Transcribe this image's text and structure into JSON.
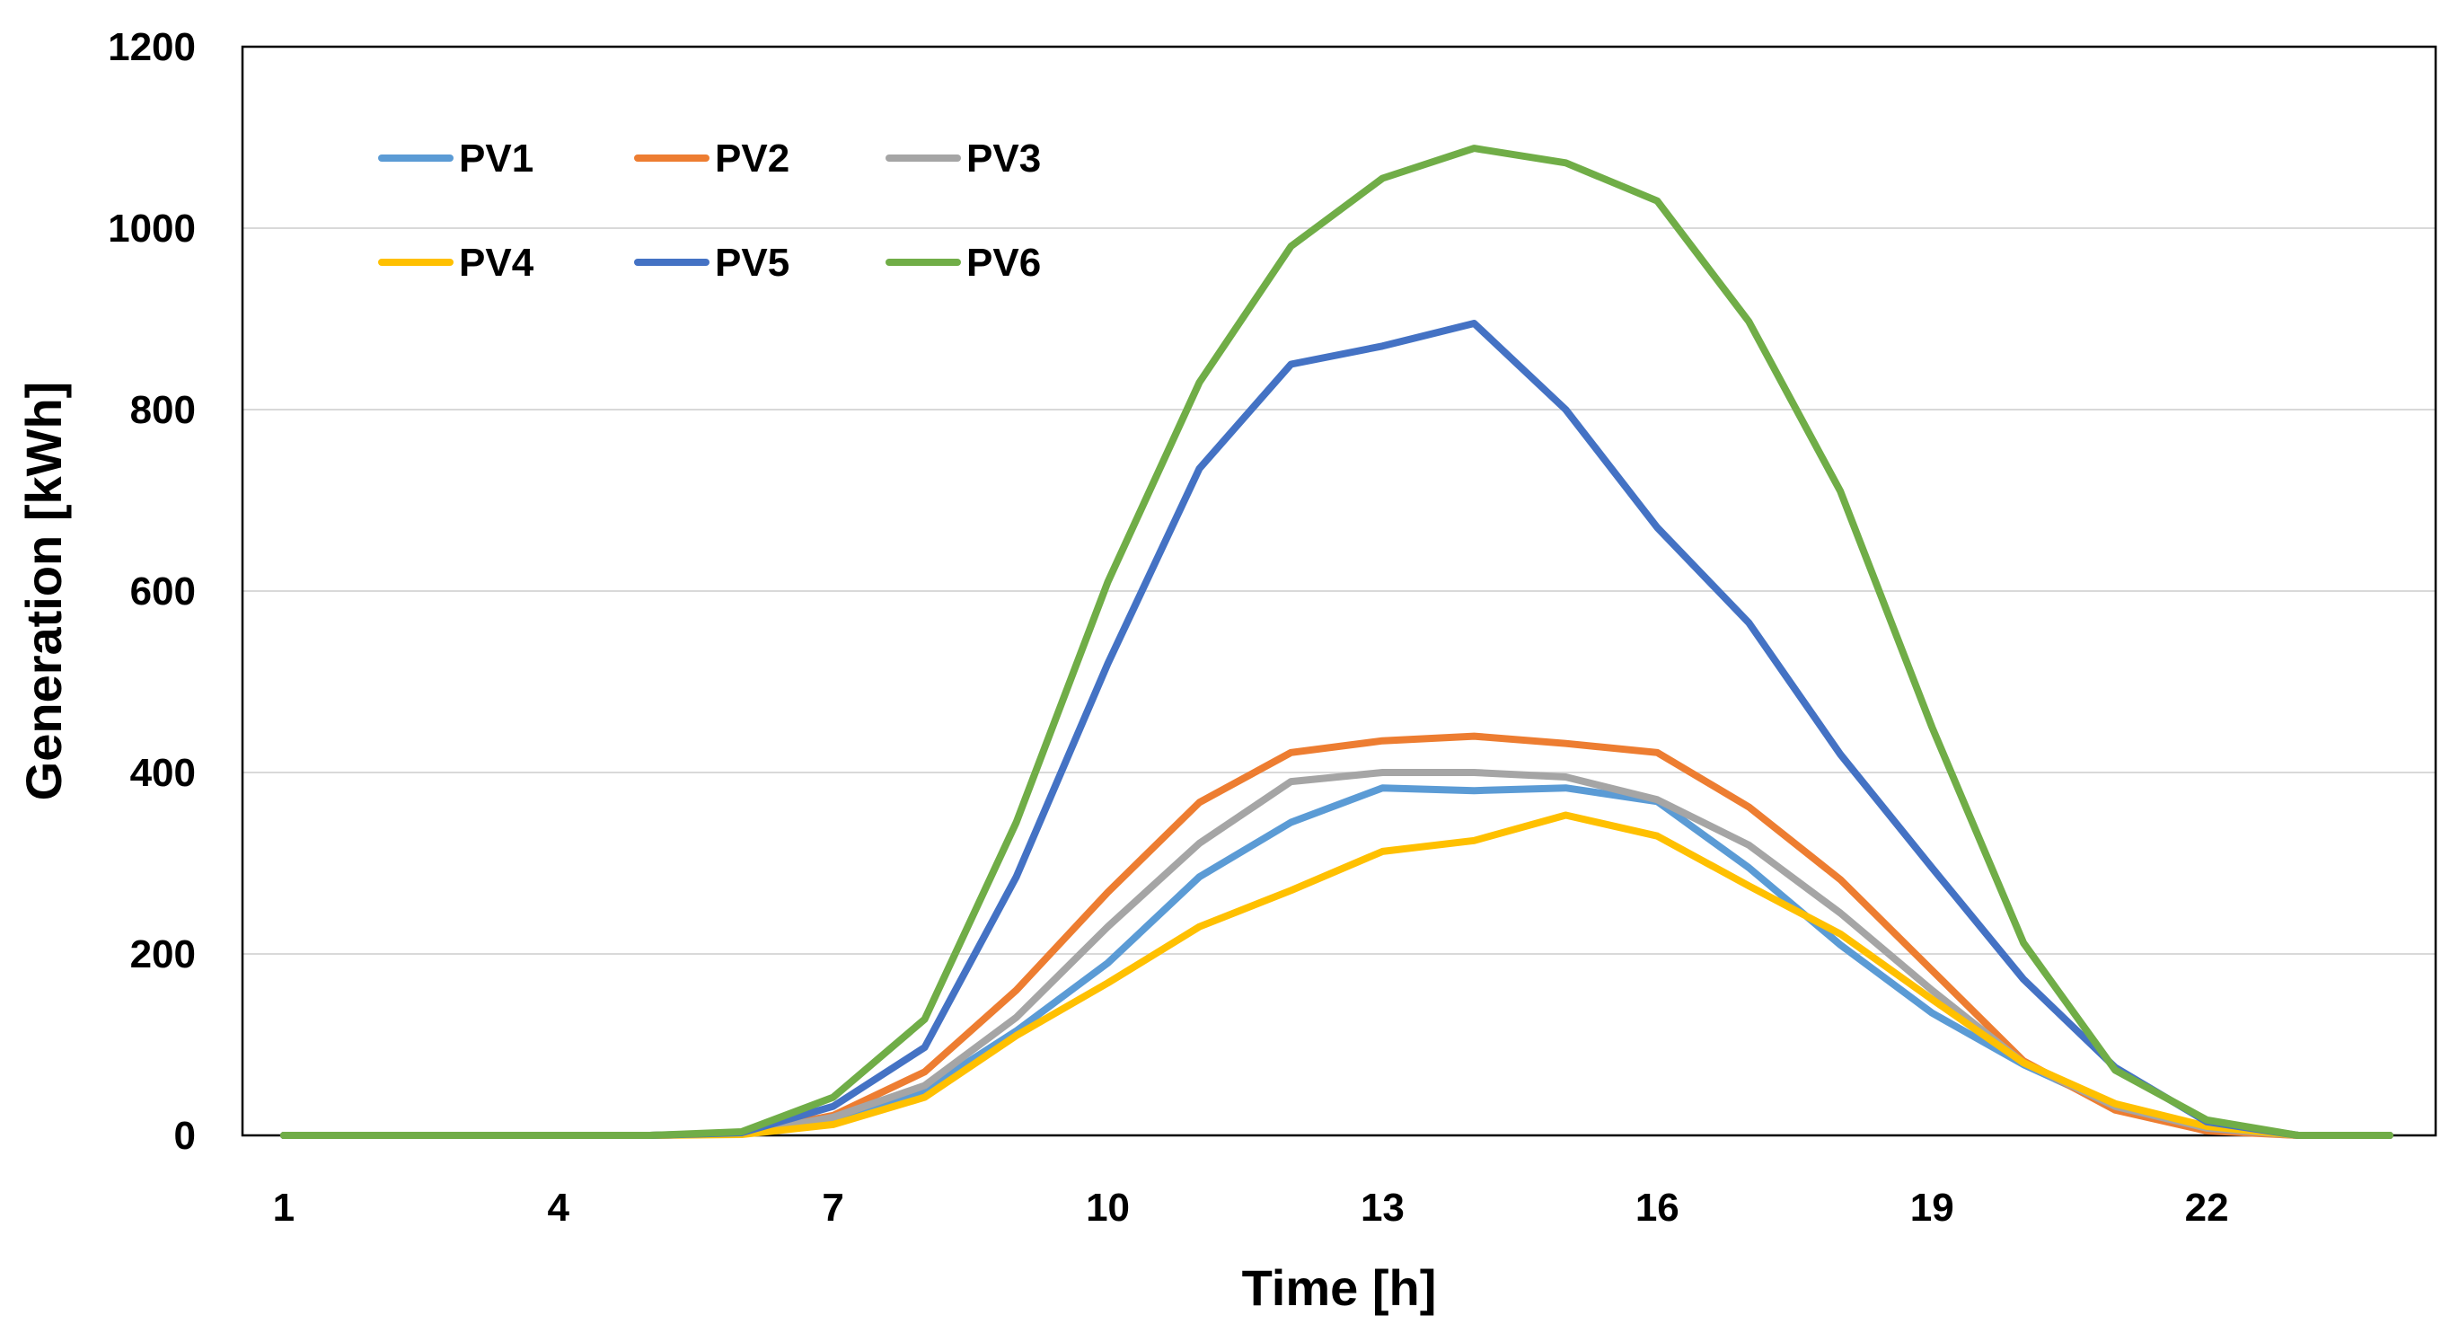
{
  "chart_data": {
    "type": "line",
    "title": "",
    "xlabel": "Time [h]",
    "ylabel": "Generation [kWh]",
    "x": [
      1,
      2,
      3,
      4,
      5,
      6,
      7,
      8,
      9,
      10,
      11,
      12,
      13,
      14,
      15,
      16,
      17,
      18,
      19,
      20,
      21,
      22,
      23,
      24
    ],
    "xticks": [
      1,
      4,
      7,
      10,
      13,
      16,
      19,
      22
    ],
    "xlim": [
      0.55,
      24.5
    ],
    "ylim": [
      0,
      1200
    ],
    "yticks": [
      0,
      200,
      400,
      600,
      800,
      1000,
      1200
    ],
    "grid": true,
    "legend_position": "top-left",
    "series": [
      {
        "name": "PV1",
        "color": "#5b9bd5",
        "values": [
          0,
          0,
          0,
          0,
          0,
          2,
          18,
          50,
          115,
          190,
          285,
          345,
          383,
          380,
          383,
          368,
          295,
          210,
          135,
          78,
          32,
          8,
          0,
          0
        ]
      },
      {
        "name": "PV2",
        "color": "#ed7d31",
        "values": [
          0,
          0,
          0,
          0,
          0,
          2,
          22,
          70,
          160,
          268,
          367,
          422,
          435,
          440,
          432,
          422,
          362,
          282,
          182,
          82,
          28,
          5,
          0,
          0
        ]
      },
      {
        "name": "PV3",
        "color": "#a5a5a5",
        "values": [
          0,
          0,
          0,
          0,
          0,
          2,
          20,
          55,
          130,
          230,
          322,
          390,
          400,
          400,
          395,
          370,
          320,
          245,
          160,
          80,
          32,
          8,
          0,
          0
        ]
      },
      {
        "name": "PV4",
        "color": "#ffc000",
        "values": [
          0,
          0,
          0,
          0,
          0,
          1,
          12,
          42,
          110,
          168,
          230,
          270,
          313,
          325,
          353,
          330,
          275,
          222,
          150,
          80,
          35,
          10,
          0,
          0
        ]
      },
      {
        "name": "PV5",
        "color": "#4472c4",
        "values": [
          0,
          0,
          0,
          0,
          0,
          3,
          32,
          97,
          285,
          520,
          735,
          850,
          870,
          895,
          800,
          670,
          565,
          420,
          295,
          172,
          75,
          15,
          0,
          0
        ]
      },
      {
        "name": "PV6",
        "color": "#70ad47",
        "values": [
          0,
          0,
          0,
          0,
          0,
          4,
          42,
          128,
          345,
          610,
          830,
          980,
          1055,
          1088,
          1072,
          1030,
          897,
          710,
          450,
          212,
          72,
          17,
          0,
          0
        ]
      }
    ]
  }
}
